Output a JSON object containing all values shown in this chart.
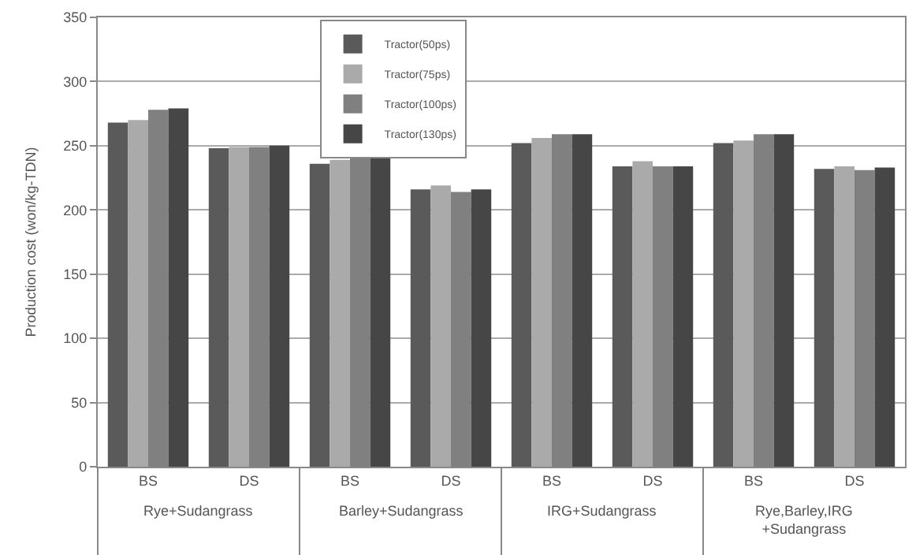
{
  "chart_data": {
    "type": "bar",
    "categories": [
      "BS",
      "DS",
      "BS",
      "DS",
      "BS",
      "DS",
      "BS",
      "DS"
    ],
    "ylabel": "Production cost (won/kg-TDN)",
    "annotations": [
      "Rye+Sudangrass",
      "Barley+Sudangrass",
      "IRG+Sudangrass",
      "Rye,Barley,IRG\n+Sudangrass"
    ],
    "series": [
      {
        "name": "Tractor(50ps)",
        "color": "#5a5a5a",
        "values": [
          268,
          248,
          236,
          216,
          252,
          234,
          252,
          232
        ]
      },
      {
        "name": "Tractor(75ps)",
        "color": "#aaaaaa",
        "values": [
          270,
          249,
          239,
          219,
          256,
          238,
          254,
          234
        ]
      },
      {
        "name": "Tractor(100ps)",
        "color": "#808080",
        "values": [
          278,
          249,
          242,
          214,
          259,
          234,
          259,
          231
        ]
      },
      {
        "name": "Tractor(130ps)",
        "color": "#464646",
        "values": [
          279,
          250,
          242,
          216,
          259,
          234,
          259,
          233
        ]
      }
    ],
    "ylim": [
      0,
      350
    ],
    "yticks": [
      0,
      50,
      100,
      150,
      200,
      250,
      300,
      350
    ],
    "grid": "y",
    "legend": "top"
  }
}
